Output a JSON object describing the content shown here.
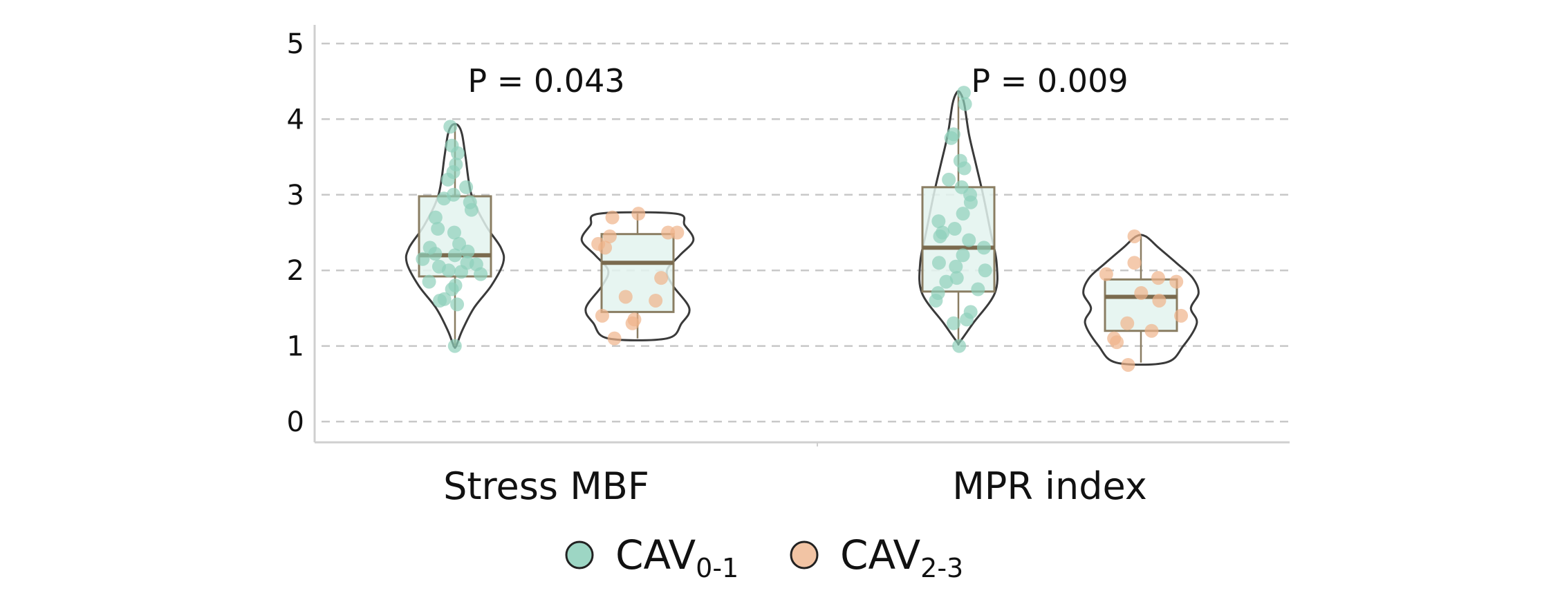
{
  "chart_data": {
    "type": "violin-box",
    "categories": [
      "Stress MBF",
      "MPR index"
    ],
    "ylim": [
      0,
      5
    ],
    "y_ticks": [
      0,
      1,
      2,
      3,
      4,
      5
    ],
    "grid": "dashed-horizontal",
    "annotations": [
      {
        "category": "Stress MBF",
        "text": "P = 0.043"
      },
      {
        "category": "MPR index",
        "text": "P = 0.009"
      }
    ],
    "legend": {
      "placement": "bottom-center",
      "items": [
        {
          "name": "CAV",
          "subscript": "0-1",
          "color": "#9dd6c4"
        },
        {
          "name": "CAV",
          "subscript": "2-3",
          "color": "#f2c4a4"
        }
      ]
    },
    "series": [
      {
        "category": "Stress MBF",
        "group": "CAV0-1",
        "color": "#8fd0bb",
        "box": {
          "min": 1.0,
          "q1": 1.92,
          "median": 2.2,
          "q3": 2.98,
          "max": 3.92
        },
        "violin": [
          [
            1.0,
            0.02
          ],
          [
            1.2,
            0.12
          ],
          [
            1.5,
            0.32
          ],
          [
            1.8,
            0.62
          ],
          [
            2.1,
            0.82
          ],
          [
            2.3,
            0.78
          ],
          [
            2.6,
            0.52
          ],
          [
            3.0,
            0.28
          ],
          [
            3.5,
            0.18
          ],
          [
            3.8,
            0.12
          ],
          [
            3.92,
            0.05
          ]
        ],
        "points": [
          1.0,
          1.55,
          1.6,
          1.62,
          1.75,
          1.8,
          1.85,
          1.95,
          1.98,
          2.0,
          2.05,
          2.08,
          2.1,
          2.15,
          2.2,
          2.22,
          2.25,
          2.3,
          2.35,
          2.5,
          2.55,
          2.7,
          2.8,
          2.9,
          2.95,
          3.0,
          3.1,
          3.2,
          3.3,
          3.4,
          3.55,
          3.65,
          3.9
        ]
      },
      {
        "category": "Stress MBF",
        "group": "CAV2-3",
        "color": "#f0b48a",
        "box": {
          "min": 1.1,
          "q1": 1.45,
          "median": 2.1,
          "q3": 2.48,
          "max": 2.75
        },
        "violin": [
          [
            1.1,
            0.5
          ],
          [
            1.3,
            0.75
          ],
          [
            1.5,
            0.88
          ],
          [
            1.8,
            0.6
          ],
          [
            2.0,
            0.5
          ],
          [
            2.2,
            0.72
          ],
          [
            2.4,
            0.95
          ],
          [
            2.6,
            0.8
          ],
          [
            2.75,
            0.65
          ]
        ],
        "points": [
          1.1,
          1.3,
          1.35,
          1.4,
          1.6,
          1.65,
          1.9,
          2.3,
          2.35,
          2.45,
          2.5,
          2.5,
          2.7,
          2.75
        ]
      },
      {
        "category": "MPR index",
        "group": "CAV0-1",
        "color": "#8fd0bb",
        "box": {
          "min": 1.05,
          "q1": 1.72,
          "median": 2.3,
          "q3": 3.1,
          "max": 4.35
        },
        "violin": [
          [
            1.05,
            0.02
          ],
          [
            1.3,
            0.25
          ],
          [
            1.7,
            0.62
          ],
          [
            2.1,
            0.65
          ],
          [
            2.5,
            0.55
          ],
          [
            3.0,
            0.42
          ],
          [
            3.4,
            0.3
          ],
          [
            3.8,
            0.18
          ],
          [
            4.2,
            0.1
          ],
          [
            4.35,
            0.03
          ]
        ],
        "points": [
          1.0,
          1.3,
          1.35,
          1.45,
          1.6,
          1.7,
          1.75,
          1.85,
          1.9,
          2.0,
          2.05,
          2.1,
          2.2,
          2.3,
          2.4,
          2.45,
          2.5,
          2.55,
          2.65,
          2.75,
          2.9,
          3.0,
          3.1,
          3.2,
          3.35,
          3.45,
          3.75,
          3.8,
          4.2,
          4.35
        ]
      },
      {
        "category": "MPR index",
        "group": "CAV2-3",
        "color": "#f0b48a",
        "box": {
          "min": 0.78,
          "q1": 1.2,
          "median": 1.65,
          "q3": 1.88,
          "max": 2.45
        },
        "violin": [
          [
            0.78,
            0.42
          ],
          [
            1.0,
            0.72
          ],
          [
            1.3,
            0.95
          ],
          [
            1.5,
            0.85
          ],
          [
            1.7,
            0.98
          ],
          [
            1.9,
            0.88
          ],
          [
            2.1,
            0.6
          ],
          [
            2.3,
            0.3
          ],
          [
            2.45,
            0.08
          ]
        ],
        "points": [
          0.75,
          1.05,
          1.1,
          1.2,
          1.3,
          1.4,
          1.6,
          1.7,
          1.85,
          1.9,
          1.95,
          2.1,
          2.45
        ]
      }
    ]
  }
}
